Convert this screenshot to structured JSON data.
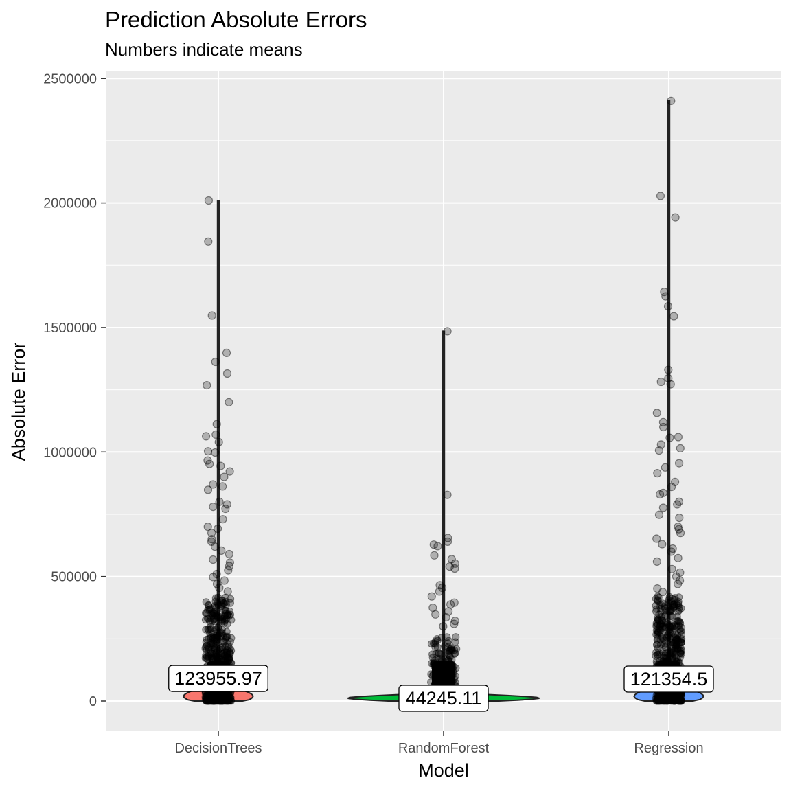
{
  "chart_data": {
    "type": "violin",
    "title": "Prediction Absolute Errors",
    "subtitle": "Numbers indicate means",
    "xlabel": "Model",
    "ylabel": "Absolute Error",
    "ylim": [
      -120000,
      2550000
    ],
    "y_ticks": [
      0,
      500000,
      1000000,
      1500000,
      2000000,
      2500000
    ],
    "y_tick_labels": [
      "0",
      "500000",
      "1000000",
      "1500000",
      "2000000",
      "2500000"
    ],
    "grid": true,
    "categories": [
      "DecisionTrees",
      "RandomForest",
      "Regression"
    ],
    "series": [
      {
        "category": "DecisionTrees",
        "color": "#F8766D",
        "mean": 123955.97,
        "mean_label": "123955.97",
        "max": 2010000,
        "outliers": [
          2010000,
          1845000,
          1548000,
          1398000,
          1362000,
          1315000,
          1268000,
          1200000,
          1112000,
          1070000,
          1063000,
          1040000,
          1003000,
          998000,
          966000,
          952000,
          944000,
          922000,
          900000,
          870000,
          862000,
          848000,
          800000,
          790000,
          780000,
          772000,
          730000,
          700000,
          692000,
          675000,
          650000,
          640000,
          620000,
          604000,
          590000,
          568000,
          556000,
          542000,
          525000,
          510000,
          498000,
          484000,
          470000,
          455000,
          440000
        ]
      },
      {
        "category": "RandomForest",
        "color": "#00BA38",
        "mean": 44245.11,
        "mean_label": "44245.11",
        "max": 1485000,
        "outliers": [
          1485000,
          828000,
          655000,
          640000,
          628000,
          622000,
          585000,
          570000,
          552000,
          540000,
          532000,
          465000,
          455000,
          440000,
          420000,
          395000,
          388000,
          375000,
          360000,
          348000,
          336000,
          322000,
          310000,
          300000
        ]
      },
      {
        "category": "Regression",
        "color": "#619CFF",
        "mean": 121354.5,
        "mean_label": "121354.5",
        "max": 2410000,
        "outliers": [
          2410000,
          2028000,
          1942000,
          1643000,
          1625000,
          1585000,
          1545000,
          1330000,
          1296000,
          1282000,
          1272000,
          1157000,
          1120000,
          1100000,
          1060000,
          1057000,
          1030000,
          1015000,
          1006000,
          955000,
          938000,
          915000,
          880000,
          860000,
          836000,
          830000,
          800000,
          790000,
          776000,
          748000,
          736000,
          700000,
          690000,
          675000,
          652000,
          630000,
          612000,
          600000,
          574000,
          560000,
          530000,
          516000,
          500000,
          484000,
          470000,
          452000,
          438000
        ]
      }
    ]
  }
}
